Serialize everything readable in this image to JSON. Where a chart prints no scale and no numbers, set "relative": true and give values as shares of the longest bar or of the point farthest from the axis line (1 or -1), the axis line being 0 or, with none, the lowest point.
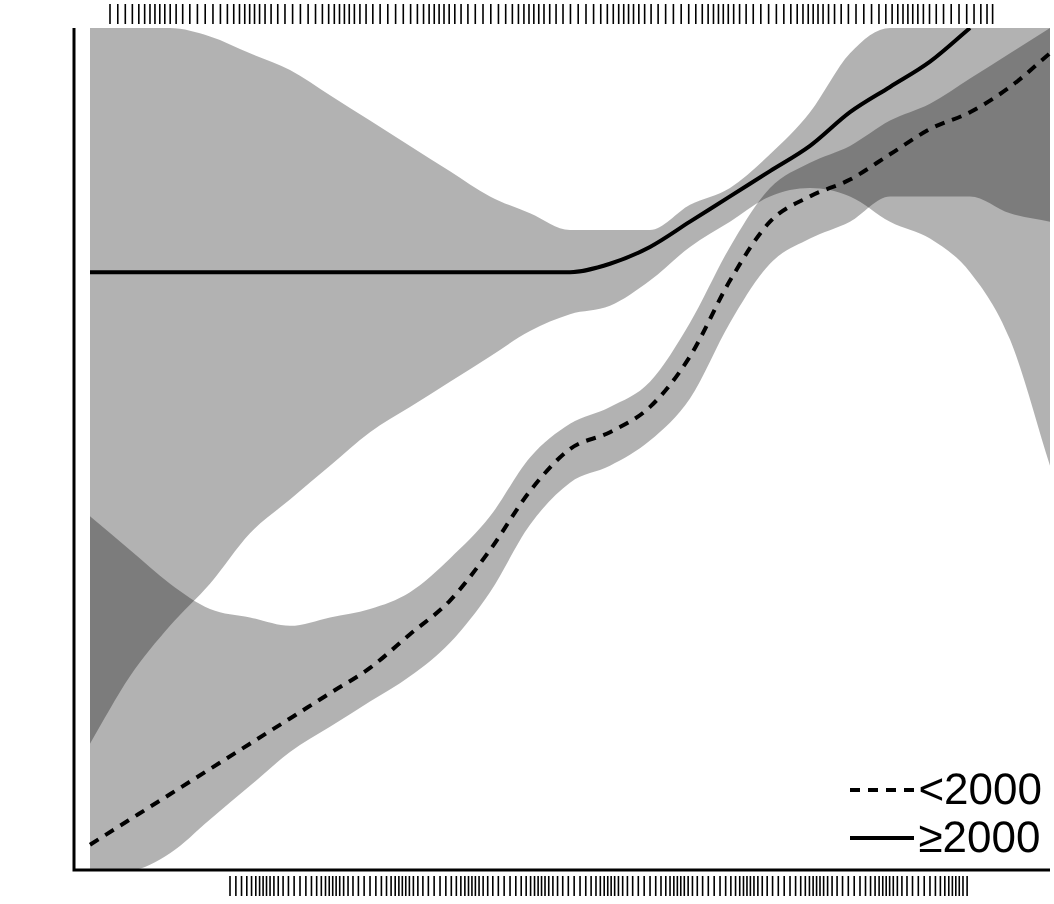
{
  "chart_data": {
    "type": "line",
    "relative": true,
    "categories": [
      null,
      null,
      null,
      null,
      null,
      null,
      null,
      null,
      null,
      null,
      null,
      null,
      null,
      null,
      null,
      null,
      null,
      null,
      null,
      null,
      null,
      null,
      null,
      null,
      null
    ],
    "legend": "bottom right",
    "series": [
      {
        "name": "<2000",
        "color": "#000000",
        "line_style": "dashed",
        "values": [
          0.03,
          0.06,
          0.09,
          0.12,
          0.15,
          0.18,
          0.21,
          0.24,
          0.28,
          0.32,
          0.38,
          0.45,
          0.5,
          0.52,
          0.55,
          0.61,
          0.7,
          0.77,
          0.8,
          0.82,
          0.85,
          0.88,
          0.9,
          0.93,
          0.97
        ],
        "upper": [
          0.42,
          0.38,
          0.34,
          0.31,
          0.3,
          0.29,
          0.3,
          0.31,
          0.33,
          0.37,
          0.42,
          0.49,
          0.53,
          0.55,
          0.58,
          0.65,
          0.74,
          0.81,
          0.84,
          0.86,
          0.89,
          0.91,
          0.94,
          0.97,
          1.0
        ],
        "lower": [
          0,
          0,
          0.02,
          0.06,
          0.1,
          0.14,
          0.17,
          0.2,
          0.23,
          0.27,
          0.33,
          0.41,
          0.46,
          0.48,
          0.51,
          0.56,
          0.65,
          0.72,
          0.75,
          0.77,
          0.8,
          0.8,
          0.8,
          0.78,
          0.77
        ]
      },
      {
        "name": "≥2000",
        "color": "#000000",
        "line_style": "solid",
        "values": [
          0.71,
          0.71,
          0.71,
          0.71,
          0.71,
          0.71,
          0.71,
          0.71,
          0.71,
          0.71,
          0.71,
          0.71,
          0.71,
          0.72,
          0.74,
          0.77,
          0.8,
          0.83,
          0.86,
          0.9,
          0.93,
          0.96,
          1.0,
          null,
          null
        ],
        "upper": [
          1.0,
          1.0,
          1.0,
          0.99,
          0.97,
          0.95,
          0.92,
          0.89,
          0.86,
          0.83,
          0.8,
          0.78,
          0.76,
          0.76,
          0.76,
          0.79,
          0.81,
          0.85,
          0.9,
          0.97,
          1.0,
          1.0,
          1.0,
          1.0,
          1.0
        ],
        "lower": [
          0.15,
          0.23,
          0.29,
          0.34,
          0.4,
          0.44,
          0.48,
          0.52,
          0.55,
          0.58,
          0.61,
          0.64,
          0.66,
          0.67,
          0.7,
          0.74,
          0.77,
          0.8,
          0.81,
          0.8,
          0.77,
          0.75,
          0.71,
          0.63,
          0.48
        ]
      }
    ]
  }
}
